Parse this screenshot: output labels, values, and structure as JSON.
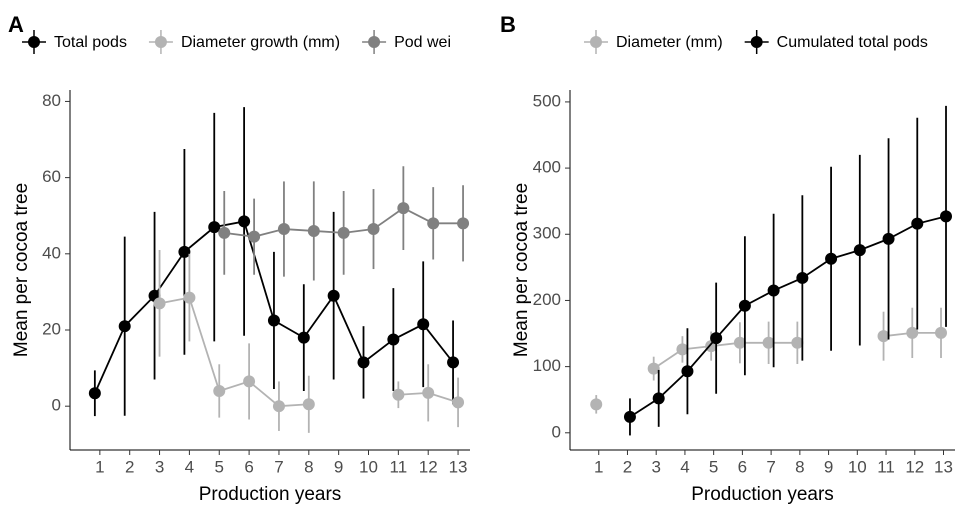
{
  "chart_data": [
    {
      "type": "line",
      "label": "A",
      "x_label": "Production years",
      "y_label": "Mean per cocoa tree",
      "x": [
        1,
        2,
        3,
        4,
        5,
        6,
        7,
        8,
        9,
        10,
        11,
        12,
        13
      ],
      "xlim": [
        0,
        13.4
      ],
      "xticks": [
        1,
        2,
        3,
        4,
        5,
        6,
        7,
        8,
        9,
        10,
        11,
        12,
        13
      ],
      "ylim": [
        -11.5,
        83
      ],
      "yticks": [
        0,
        20,
        40,
        60,
        80
      ],
      "series": [
        {
          "name": "Total pods",
          "color": "#000000",
          "values": [
            3.4,
            21,
            29,
            40.5,
            47,
            48.5,
            22.5,
            18,
            29,
            11.5,
            17.5,
            21.5,
            11.5
          ],
          "errors": [
            6,
            23.5,
            22,
            27,
            30,
            30,
            18,
            14,
            22,
            9.5,
            13.5,
            16.5,
            11
          ]
        },
        {
          "name": "Diameter growth (mm)",
          "color": "#b3b3b3",
          "values": [
            null,
            null,
            27,
            28.5,
            4,
            6.5,
            0,
            0.5,
            null,
            null,
            3,
            3.5,
            1
          ],
          "errors": [
            null,
            null,
            14,
            11.5,
            7,
            10,
            6.5,
            7.5,
            null,
            null,
            3.5,
            7.5,
            6.5
          ]
        },
        {
          "name": "Pod wei",
          "color": "#808080",
          "values": [
            null,
            null,
            null,
            null,
            45.5,
            44.5,
            46.5,
            46,
            45.5,
            46.5,
            52,
            48,
            48
          ],
          "errors": [
            null,
            null,
            null,
            null,
            11,
            10,
            12.5,
            13,
            11,
            10.5,
            11,
            9.5,
            10
          ]
        }
      ]
    },
    {
      "type": "line",
      "label": "B",
      "x_label": "Production years",
      "y_label": "Mean per cocoa tree",
      "x": [
        1,
        2,
        3,
        4,
        5,
        6,
        7,
        8,
        9,
        10,
        11,
        12,
        13
      ],
      "xlim": [
        0,
        13.4
      ],
      "xticks": [
        1,
        2,
        3,
        4,
        5,
        6,
        7,
        8,
        9,
        10,
        11,
        12,
        13
      ],
      "ylim": [
        -26,
        518
      ],
      "yticks": [
        0,
        100,
        200,
        300,
        400,
        500
      ],
      "series": [
        {
          "name": "Diameter (mm)",
          "color": "#b3b3b3",
          "values": [
            43,
            null,
            97,
            126,
            131,
            136,
            136,
            136,
            null,
            null,
            146,
            151,
            151
          ],
          "errors": [
            14,
            null,
            18,
            20,
            22,
            31,
            32,
            32,
            null,
            null,
            37,
            38,
            38
          ]
        },
        {
          "name": "Cumulated total pods",
          "color": "#000000",
          "values": [
            null,
            24,
            52,
            93,
            143,
            192,
            215,
            234,
            263,
            276,
            293,
            316,
            327
          ],
          "errors": [
            null,
            28,
            43,
            65,
            84,
            105,
            116,
            125,
            139,
            144,
            152,
            160,
            167
          ]
        }
      ]
    }
  ]
}
